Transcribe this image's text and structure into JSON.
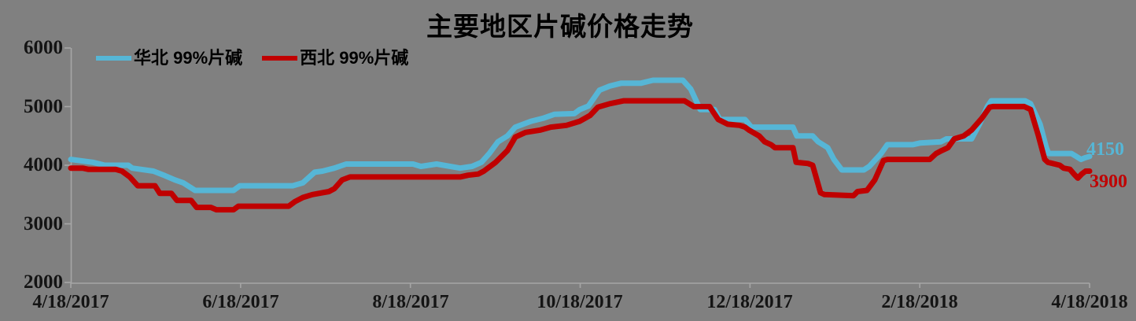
{
  "title": "主要地区片碱价格走势",
  "colors": {
    "background": "#808080",
    "axis": "#A6A6A6",
    "title_text": "#000000",
    "north_china_blue": "#56B6D6",
    "northwest_red": "#C00000"
  },
  "chart_data": {
    "type": "line",
    "title": "主要地区片碱价格走势",
    "xlabel": "",
    "ylabel": "",
    "grid": false,
    "legend_position": "top-left",
    "x_axis": {
      "tick_labels": [
        "4/18/2017",
        "6/18/2017",
        "8/18/2017",
        "10/18/2017",
        "12/18/2017",
        "2/18/2018",
        "4/18/2018"
      ],
      "note": "x encoded as fraction 0-1 of span 4/18/2017 to 4/18/2018"
    },
    "y_axis": {
      "min": 2000,
      "max": 6000,
      "ticks": [
        6000,
        5000,
        4000,
        3000,
        2000
      ],
      "tick_labels": [
        "6000",
        "5000",
        "4000",
        "3000",
        "2000"
      ]
    },
    "series": [
      {
        "id": "north-china",
        "name": "华北 99%片碱",
        "color": "#56B6D6",
        "end_label": "4150",
        "last_value": 4150,
        "points": [
          [
            0.0,
            4100
          ],
          [
            0.0216,
            4050
          ],
          [
            0.0332,
            4000
          ],
          [
            0.0564,
            4000
          ],
          [
            0.0602,
            3950
          ],
          [
            0.0811,
            3900
          ],
          [
            0.0927,
            3820
          ],
          [
            0.1019,
            3750
          ],
          [
            0.1104,
            3700
          ],
          [
            0.122,
            3570
          ],
          [
            0.1598,
            3570
          ],
          [
            0.166,
            3650
          ],
          [
            0.2178,
            3650
          ],
          [
            0.2278,
            3700
          ],
          [
            0.2394,
            3880
          ],
          [
            0.2471,
            3900
          ],
          [
            0.2587,
            3950
          ],
          [
            0.2703,
            4020
          ],
          [
            0.3359,
            4020
          ],
          [
            0.3436,
            3980
          ],
          [
            0.3591,
            4020
          ],
          [
            0.3822,
            3950
          ],
          [
            0.3938,
            3980
          ],
          [
            0.4031,
            4050
          ],
          [
            0.4108,
            4200
          ],
          [
            0.4193,
            4400
          ],
          [
            0.4286,
            4500
          ],
          [
            0.4363,
            4650
          ],
          [
            0.4517,
            4750
          ],
          [
            0.4633,
            4800
          ],
          [
            0.4749,
            4870
          ],
          [
            0.4942,
            4880
          ],
          [
            0.4996,
            4950
          ],
          [
            0.5081,
            5010
          ],
          [
            0.5189,
            5280
          ],
          [
            0.529,
            5350
          ],
          [
            0.5405,
            5400
          ],
          [
            0.5598,
            5400
          ],
          [
            0.5714,
            5450
          ],
          [
            0.6008,
            5450
          ],
          [
            0.6085,
            5300
          ],
          [
            0.6178,
            4950
          ],
          [
            0.6317,
            4950
          ],
          [
            0.6371,
            4780
          ],
          [
            0.6618,
            4780
          ],
          [
            0.668,
            4650
          ],
          [
            0.7089,
            4650
          ],
          [
            0.7127,
            4500
          ],
          [
            0.7282,
            4500
          ],
          [
            0.7336,
            4400
          ],
          [
            0.7429,
            4300
          ],
          [
            0.749,
            4100
          ],
          [
            0.7568,
            3920
          ],
          [
            0.7784,
            3920
          ],
          [
            0.7838,
            3980
          ],
          [
            0.7954,
            4200
          ],
          [
            0.8015,
            4350
          ],
          [
            0.8263,
            4350
          ],
          [
            0.834,
            4380
          ],
          [
            0.8541,
            4400
          ],
          [
            0.8595,
            4450
          ],
          [
            0.8842,
            4450
          ],
          [
            0.8919,
            4700
          ],
          [
            0.8996,
            5000
          ],
          [
            0.9035,
            5100
          ],
          [
            0.9367,
            5100
          ],
          [
            0.9421,
            5050
          ],
          [
            0.9514,
            4700
          ],
          [
            0.9575,
            4300
          ],
          [
            0.9598,
            4200
          ],
          [
            0.9822,
            4200
          ],
          [
            0.9869,
            4150
          ],
          [
            0.9915,
            4100
          ],
          [
            0.9961,
            4130
          ],
          [
            1.0,
            4150
          ]
        ]
      },
      {
        "id": "northwest",
        "name": "西北 99%片碱",
        "color": "#C00000",
        "end_label": "3900",
        "last_value": 3900,
        "points": [
          [
            0.0,
            3950
          ],
          [
            0.0116,
            3950
          ],
          [
            0.017,
            3930
          ],
          [
            0.044,
            3930
          ],
          [
            0.0502,
            3900
          ],
          [
            0.0579,
            3800
          ],
          [
            0.0656,
            3650
          ],
          [
            0.0826,
            3650
          ],
          [
            0.0873,
            3520
          ],
          [
            0.0988,
            3520
          ],
          [
            0.1042,
            3400
          ],
          [
            0.1181,
            3400
          ],
          [
            0.1235,
            3280
          ],
          [
            0.1375,
            3280
          ],
          [
            0.1429,
            3240
          ],
          [
            0.1598,
            3240
          ],
          [
            0.1645,
            3300
          ],
          [
            0.2139,
            3300
          ],
          [
            0.2201,
            3380
          ],
          [
            0.2278,
            3450
          ],
          [
            0.2371,
            3500
          ],
          [
            0.2533,
            3550
          ],
          [
            0.2587,
            3600
          ],
          [
            0.2664,
            3750
          ],
          [
            0.2741,
            3800
          ],
          [
            0.3822,
            3800
          ],
          [
            0.39,
            3830
          ],
          [
            0.4,
            3850
          ],
          [
            0.4054,
            3900
          ],
          [
            0.417,
            4050
          ],
          [
            0.4286,
            4250
          ],
          [
            0.4363,
            4480
          ],
          [
            0.4463,
            4560
          ],
          [
            0.461,
            4600
          ],
          [
            0.471,
            4650
          ],
          [
            0.4865,
            4680
          ],
          [
            0.4996,
            4750
          ],
          [
            0.5097,
            4850
          ],
          [
            0.5174,
            4990
          ],
          [
            0.529,
            5050
          ],
          [
            0.5429,
            5100
          ],
          [
            0.6023,
            5100
          ],
          [
            0.6116,
            5000
          ],
          [
            0.627,
            5000
          ],
          [
            0.6355,
            4780
          ],
          [
            0.6448,
            4700
          ],
          [
            0.6564,
            4680
          ],
          [
            0.6618,
            4650
          ],
          [
            0.6656,
            4600
          ],
          [
            0.6757,
            4500
          ],
          [
            0.6811,
            4400
          ],
          [
            0.6873,
            4350
          ],
          [
            0.6911,
            4300
          ],
          [
            0.7089,
            4300
          ],
          [
            0.712,
            4050
          ],
          [
            0.7236,
            4030
          ],
          [
            0.7282,
            4000
          ],
          [
            0.7359,
            3530
          ],
          [
            0.7398,
            3500
          ],
          [
            0.7683,
            3480
          ],
          [
            0.7722,
            3550
          ],
          [
            0.7815,
            3570
          ],
          [
            0.7892,
            3750
          ],
          [
            0.7977,
            4080
          ],
          [
            0.8015,
            4100
          ],
          [
            0.8432,
            4100
          ],
          [
            0.8494,
            4200
          ],
          [
            0.8548,
            4250
          ],
          [
            0.861,
            4300
          ],
          [
            0.8672,
            4450
          ],
          [
            0.8764,
            4500
          ],
          [
            0.8842,
            4600
          ],
          [
            0.8942,
            4800
          ],
          [
            0.9019,
            4990
          ],
          [
            0.905,
            5000
          ],
          [
            0.9359,
            5000
          ],
          [
            0.9421,
            4950
          ],
          [
            0.9498,
            4500
          ],
          [
            0.956,
            4100
          ],
          [
            0.9591,
            4050
          ],
          [
            0.9707,
            4000
          ],
          [
            0.9745,
            3950
          ],
          [
            0.9807,
            3930
          ],
          [
            0.9846,
            3850
          ],
          [
            0.9884,
            3780
          ],
          [
            0.9923,
            3850
          ],
          [
            0.9961,
            3900
          ],
          [
            1.0,
            3900
          ]
        ]
      }
    ]
  }
}
